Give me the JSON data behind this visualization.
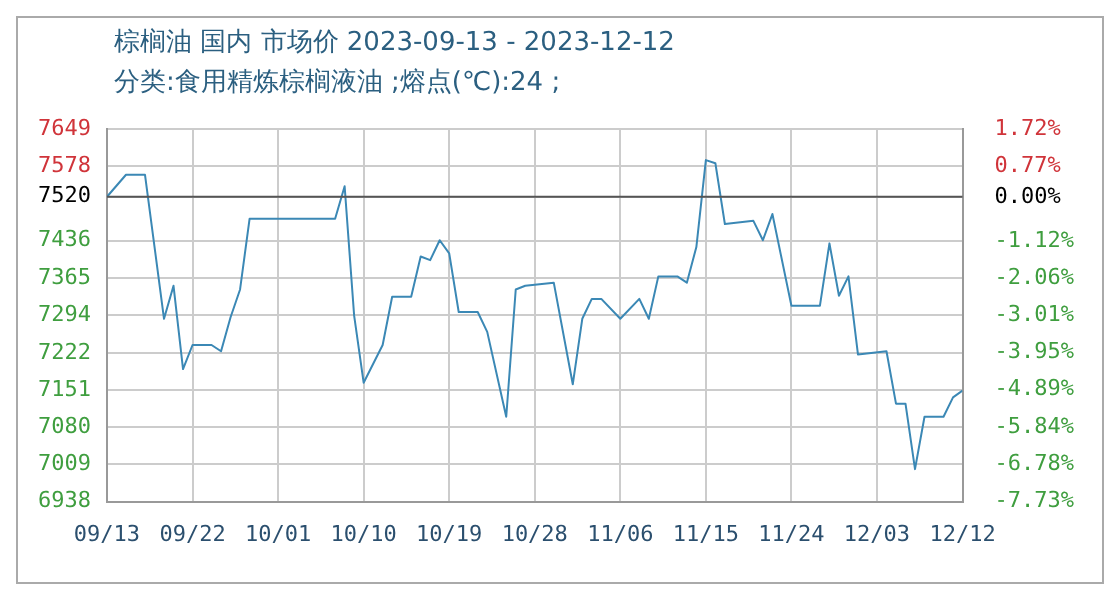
{
  "chart_data": {
    "type": "line",
    "title": "棕榈油 国内 市场价 2023-09-13 - 2023-12-12",
    "subtitle": "分类:食用精炼棕榈液油 ;熔点(℃):24 ;",
    "x": [
      "2023-09-13",
      "2023-09-15",
      "2023-09-17",
      "2023-09-19",
      "2023-09-20",
      "2023-09-21",
      "2023-09-22",
      "2023-09-24",
      "2023-09-25",
      "2023-09-26",
      "2023-09-27",
      "2023-09-28",
      "2023-10-07",
      "2023-10-08",
      "2023-10-09",
      "2023-10-10",
      "2023-10-12",
      "2023-10-13",
      "2023-10-15",
      "2023-10-16",
      "2023-10-17",
      "2023-10-18",
      "2023-10-19",
      "2023-10-20",
      "2023-10-22",
      "2023-10-23",
      "2023-10-25",
      "2023-10-26",
      "2023-10-27",
      "2023-10-30",
      "2023-11-01",
      "2023-11-02",
      "2023-11-03",
      "2023-11-04",
      "2023-11-06",
      "2023-11-08",
      "2023-11-09",
      "2023-11-10",
      "2023-11-12",
      "2023-11-13",
      "2023-11-14",
      "2023-11-15",
      "2023-11-16",
      "2023-11-17",
      "2023-11-20",
      "2023-11-21",
      "2023-11-22",
      "2023-11-24",
      "2023-11-27",
      "2023-11-28",
      "2023-11-29",
      "2023-11-30",
      "2023-12-01",
      "2023-12-04",
      "2023-12-05",
      "2023-12-06",
      "2023-12-07",
      "2023-12-08",
      "2023-12-10",
      "2023-12-11",
      "2023-12-12"
    ],
    "series": [
      {
        "color": "#3b88b5",
        "values": [
          7520,
          7562,
          7562,
          7287,
          7350,
          7191,
          7237,
          7237,
          7225,
          7290,
          7343,
          7478,
          7478,
          7540,
          7293,
          7165,
          7237,
          7329,
          7329,
          7406,
          7399,
          7437,
          7412,
          7300,
          7300,
          7262,
          7100,
          7343,
          7350,
          7356,
          7162,
          7287,
          7325,
          7325,
          7287,
          7325,
          7287,
          7368,
          7368,
          7356,
          7424,
          7590,
          7584,
          7468,
          7474,
          7437,
          7487,
          7312,
          7312,
          7431,
          7331,
          7368,
          7219,
          7225,
          7125,
          7125,
          7000,
          7100,
          7100,
          7137,
          7150
        ]
      }
    ],
    "xlim": [
      "2023-09-13",
      "2023-12-12"
    ],
    "xticks": [
      {
        "value": "2023-09-13",
        "label": "09/13"
      },
      {
        "value": "2023-09-22",
        "label": "09/22"
      },
      {
        "value": "2023-10-01",
        "label": "10/01"
      },
      {
        "value": "2023-10-10",
        "label": "10/10"
      },
      {
        "value": "2023-10-19",
        "label": "10/19"
      },
      {
        "value": "2023-10-28",
        "label": "10/28"
      },
      {
        "value": "2023-11-06",
        "label": "11/06"
      },
      {
        "value": "2023-11-15",
        "label": "11/15"
      },
      {
        "value": "2023-11-24",
        "label": "11/24"
      },
      {
        "value": "2023-12-03",
        "label": "12/03"
      },
      {
        "value": "2023-12-12",
        "label": "12/12"
      }
    ],
    "ylim": [
      6938,
      7649
    ],
    "yticks": [
      6938,
      7009,
      7080,
      7151,
      7222,
      7294,
      7365,
      7436,
      7520,
      7578,
      7649
    ],
    "y2lim": [
      -7.73,
      1.72
    ],
    "y2ticks": [
      {
        "value": -7.73,
        "label": "-7.73%"
      },
      {
        "value": -6.78,
        "label": "-6.78%"
      },
      {
        "value": -5.84,
        "label": "-5.84%"
      },
      {
        "value": -4.89,
        "label": "-4.89%"
      },
      {
        "value": -3.95,
        "label": "-3.95%"
      },
      {
        "value": -3.01,
        "label": "-3.01%"
      },
      {
        "value": -2.06,
        "label": "-2.06%"
      },
      {
        "value": -1.12,
        "label": "-1.12%"
      },
      {
        "value": 0,
        "label": "0.00%"
      },
      {
        "value": 0.77,
        "label": "0.77%"
      },
      {
        "value": 1.72,
        "label": "1.72%"
      }
    ],
    "ref_lines": [
      {
        "axis": "y",
        "value": 7520,
        "color": "#555555"
      }
    ],
    "grid": true,
    "legend": false,
    "marker": "none",
    "line_style": "solid"
  }
}
